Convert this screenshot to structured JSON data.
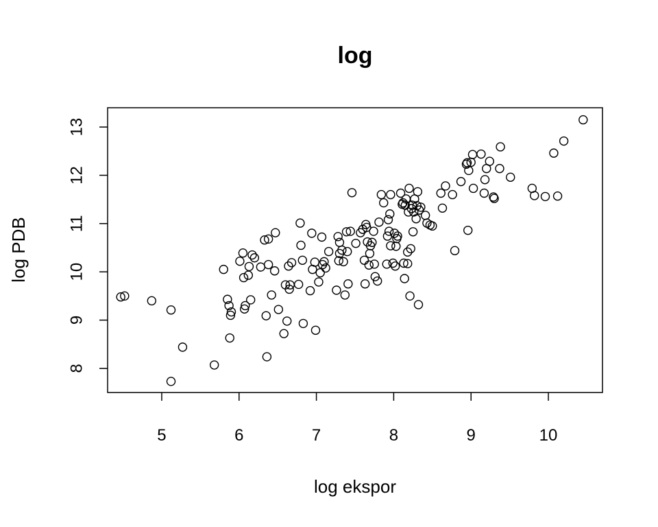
{
  "chart_data": {
    "type": "scatter",
    "title": "log",
    "xlabel": "log ekspor",
    "ylabel": "log PDB",
    "xlim": [
      4.3,
      10.7
    ],
    "ylim": [
      7.5,
      13.4
    ],
    "x_ticks": [
      5,
      6,
      7,
      8,
      9,
      10
    ],
    "y_ticks": [
      8,
      9,
      10,
      11,
      12,
      13
    ],
    "grid": false,
    "marker": "open-circle",
    "points": [
      [
        4.47,
        9.48
      ],
      [
        4.52,
        9.5
      ],
      [
        4.87,
        9.4
      ],
      [
        5.12,
        9.21
      ],
      [
        5.12,
        7.73
      ],
      [
        5.27,
        8.44
      ],
      [
        5.68,
        8.07
      ],
      [
        5.8,
        10.05
      ],
      [
        5.85,
        9.43
      ],
      [
        5.87,
        9.3
      ],
      [
        5.88,
        8.63
      ],
      [
        5.89,
        9.1
      ],
      [
        5.9,
        9.17
      ],
      [
        6.01,
        10.22
      ],
      [
        6.05,
        10.39
      ],
      [
        6.06,
        9.88
      ],
      [
        6.07,
        9.23
      ],
      [
        6.08,
        9.3
      ],
      [
        6.12,
        9.93
      ],
      [
        6.13,
        10.11
      ],
      [
        6.15,
        9.42
      ],
      [
        6.17,
        10.35
      ],
      [
        6.2,
        10.29
      ],
      [
        6.28,
        10.1
      ],
      [
        6.33,
        10.66
      ],
      [
        6.35,
        9.09
      ],
      [
        6.36,
        8.24
      ],
      [
        6.38,
        10.68
      ],
      [
        6.38,
        10.15
      ],
      [
        6.42,
        9.52
      ],
      [
        6.46,
        10.02
      ],
      [
        6.47,
        10.81
      ],
      [
        6.51,
        9.22
      ],
      [
        6.58,
        8.72
      ],
      [
        6.6,
        9.73
      ],
      [
        6.62,
        8.98
      ],
      [
        6.64,
        10.12
      ],
      [
        6.65,
        9.64
      ],
      [
        6.66,
        9.73
      ],
      [
        6.68,
        10.19
      ],
      [
        6.77,
        9.74
      ],
      [
        6.79,
        11.01
      ],
      [
        6.8,
        10.55
      ],
      [
        6.82,
        10.24
      ],
      [
        6.83,
        8.93
      ],
      [
        6.92,
        9.61
      ],
      [
        6.94,
        10.8
      ],
      [
        6.95,
        10.05
      ],
      [
        6.98,
        10.2
      ],
      [
        6.99,
        8.79
      ],
      [
        7.03,
        9.79
      ],
      [
        7.05,
        9.98
      ],
      [
        7.07,
        10.72
      ],
      [
        7.08,
        10.15
      ],
      [
        7.1,
        10.21
      ],
      [
        7.12,
        10.08
      ],
      [
        7.16,
        10.42
      ],
      [
        7.26,
        9.62
      ],
      [
        7.28,
        10.73
      ],
      [
        7.29,
        10.23
      ],
      [
        7.3,
        10.38
      ],
      [
        7.3,
        10.61
      ],
      [
        7.33,
        10.45
      ],
      [
        7.35,
        10.21
      ],
      [
        7.37,
        9.52
      ],
      [
        7.39,
        10.83
      ],
      [
        7.4,
        10.42
      ],
      [
        7.41,
        9.75
      ],
      [
        7.44,
        10.84
      ],
      [
        7.46,
        11.64
      ],
      [
        7.51,
        10.59
      ],
      [
        7.57,
        10.81
      ],
      [
        7.6,
        10.88
      ],
      [
        7.62,
        10.24
      ],
      [
        7.63,
        9.75
      ],
      [
        7.64,
        10.98
      ],
      [
        7.65,
        10.92
      ],
      [
        7.66,
        10.62
      ],
      [
        7.68,
        10.14
      ],
      [
        7.69,
        10.38
      ],
      [
        7.7,
        10.54
      ],
      [
        7.72,
        10.61
      ],
      [
        7.74,
        10.84
      ],
      [
        7.75,
        10.16
      ],
      [
        7.76,
        9.9
      ],
      [
        7.79,
        9.81
      ],
      [
        7.81,
        11.03
      ],
      [
        7.84,
        11.6
      ],
      [
        7.87,
        11.43
      ],
      [
        7.91,
        10.16
      ],
      [
        7.92,
        10.74
      ],
      [
        7.93,
        11.08
      ],
      [
        7.94,
        10.84
      ],
      [
        7.95,
        11.2
      ],
      [
        7.96,
        10.54
      ],
      [
        7.96,
        11.6
      ],
      [
        7.99,
        10.18
      ],
      [
        8.01,
        10.8
      ],
      [
        8.02,
        10.12
      ],
      [
        8.03,
        10.53
      ],
      [
        8.04,
        10.69
      ],
      [
        8.05,
        10.74
      ],
      [
        8.09,
        11.63
      ],
      [
        8.11,
        11.4
      ],
      [
        8.12,
        11.43
      ],
      [
        8.13,
        10.18
      ],
      [
        8.14,
        9.86
      ],
      [
        8.15,
        11.38
      ],
      [
        8.16,
        11.51
      ],
      [
        8.18,
        10.17
      ],
      [
        8.18,
        10.41
      ],
      [
        8.19,
        11.24
      ],
      [
        8.2,
        11.73
      ],
      [
        8.21,
        9.5
      ],
      [
        8.22,
        10.48
      ],
      [
        8.23,
        11.31
      ],
      [
        8.24,
        11.38
      ],
      [
        8.25,
        10.83
      ],
      [
        8.26,
        11.24
      ],
      [
        8.27,
        11.51
      ],
      [
        8.29,
        11.1
      ],
      [
        8.3,
        11.37
      ],
      [
        8.31,
        11.66
      ],
      [
        8.32,
        9.32
      ],
      [
        8.33,
        11.28
      ],
      [
        8.35,
        11.34
      ],
      [
        8.41,
        11.17
      ],
      [
        8.43,
        11.01
      ],
      [
        8.47,
        10.97
      ],
      [
        8.5,
        10.95
      ],
      [
        8.61,
        11.63
      ],
      [
        8.63,
        11.32
      ],
      [
        8.67,
        11.78
      ],
      [
        8.76,
        11.6
      ],
      [
        8.79,
        10.44
      ],
      [
        8.87,
        11.87
      ],
      [
        8.94,
        12.23
      ],
      [
        8.95,
        12.26
      ],
      [
        8.96,
        10.86
      ],
      [
        8.97,
        12.1
      ],
      [
        9.0,
        12.27
      ],
      [
        9.02,
        12.43
      ],
      [
        9.03,
        11.73
      ],
      [
        9.13,
        12.44
      ],
      [
        9.17,
        11.63
      ],
      [
        9.18,
        11.91
      ],
      [
        9.2,
        12.14
      ],
      [
        9.24,
        12.29
      ],
      [
        9.29,
        11.55
      ],
      [
        9.3,
        11.52
      ],
      [
        9.37,
        12.14
      ],
      [
        9.38,
        12.59
      ],
      [
        9.51,
        11.96
      ],
      [
        9.79,
        11.73
      ],
      [
        9.82,
        11.58
      ],
      [
        9.96,
        11.56
      ],
      [
        10.07,
        12.46
      ],
      [
        10.12,
        11.57
      ],
      [
        10.2,
        12.71
      ],
      [
        10.45,
        13.15
      ]
    ]
  }
}
